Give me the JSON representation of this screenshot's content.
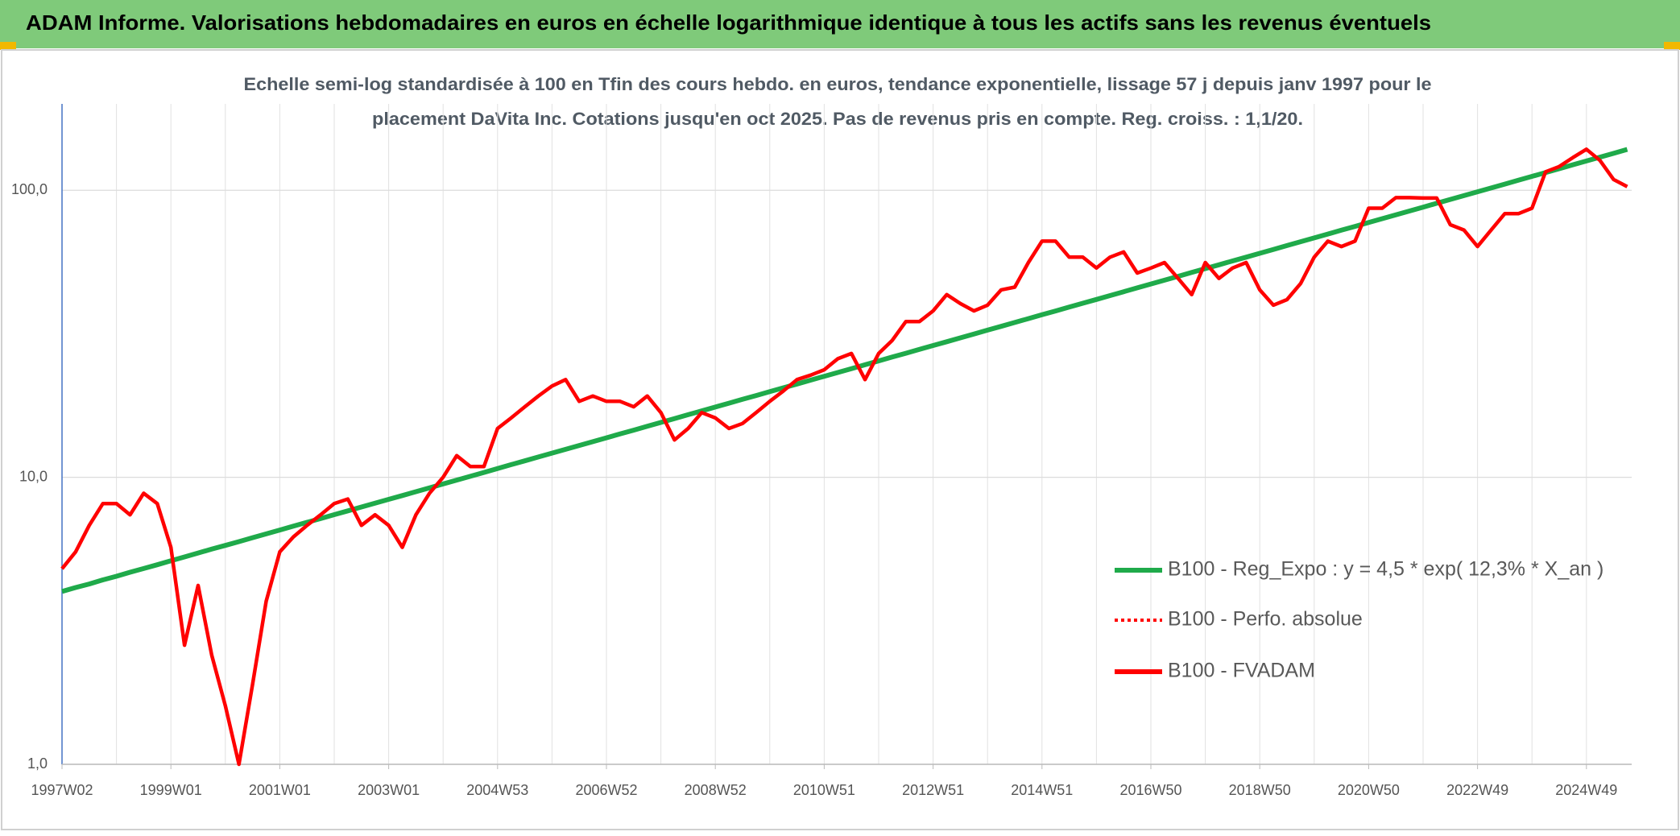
{
  "chart_data": {
    "type": "line",
    "title": "ADAM Informe. Valorisations hebdomadaires en euros en échelle logarithmique identique à tous les actifs sans les revenus éventuels",
    "subtitle": [
      "Echelle semi-log standardisée à 100 en Tfin des cours hebdo. en euros, tendance exponentielle, lissage 57 j depuis janv 1997 pour le",
      "placement DaVita Inc. Cotations jusqu'en oct 2025. Pas de revenus pris en compte. Reg. croiss. : 1,1/20."
    ],
    "log_scale": true,
    "grid": true,
    "legend": "right",
    "ylim": [
      1,
      200
    ],
    "yticks": [
      {
        "value": 1,
        "label": "1,0"
      },
      {
        "value": 10,
        "label": "10,0"
      },
      {
        "value": 100,
        "label": "100,0"
      }
    ],
    "categories": [
      "1997W02",
      null,
      null,
      null,
      null,
      null,
      null,
      null,
      "1999W01",
      null,
      null,
      null,
      null,
      null,
      null,
      null,
      "2001W01",
      null,
      null,
      null,
      null,
      null,
      null,
      null,
      "2003W01",
      null,
      null,
      null,
      null,
      null,
      null,
      null,
      "2004W53",
      null,
      null,
      null,
      null,
      null,
      null,
      null,
      "2006W52",
      null,
      null,
      null,
      null,
      null,
      null,
      null,
      "2008W52",
      null,
      null,
      null,
      null,
      null,
      null,
      null,
      "2010W51",
      null,
      null,
      null,
      null,
      null,
      null,
      null,
      "2012W51",
      null,
      null,
      null,
      null,
      null,
      null,
      null,
      "2014W51",
      null,
      null,
      null,
      null,
      null,
      null,
      null,
      "2016W50",
      null,
      null,
      null,
      null,
      null,
      null,
      null,
      "2018W50",
      null,
      null,
      null,
      null,
      null,
      null,
      null,
      "2020W50",
      null,
      null,
      null,
      null,
      null,
      null,
      null,
      "2022W49",
      null,
      null,
      null,
      null,
      null,
      null,
      null,
      "2024W49",
      null,
      null,
      null
    ],
    "series": [
      {
        "name": "B100 - Reg_Expo : y = 4,5 * exp( 12,3% *  X_an )",
        "color": "#1faa4a",
        "style": "solid",
        "values": [
          4.0,
          4.13,
          4.25,
          4.39,
          4.52,
          4.67,
          4.81,
          4.96,
          5.12,
          5.28,
          5.45,
          5.62,
          5.79,
          5.97,
          6.16,
          6.35,
          6.55,
          6.76,
          6.97,
          7.18,
          7.41,
          7.64,
          7.88,
          8.13,
          8.38,
          8.64,
          8.91,
          9.19,
          9.48,
          9.78,
          10.08,
          10.4,
          10.73,
          11.07,
          11.41,
          11.77,
          12.14,
          12.52,
          12.91,
          13.31,
          13.73,
          14.16,
          14.6,
          15.06,
          15.53,
          16.02,
          16.52,
          17.04,
          17.57,
          18.12,
          18.69,
          19.27,
          19.88,
          20.5,
          21.14,
          21.8,
          22.49,
          23.19,
          23.92,
          24.67,
          25.44,
          26.24,
          27.06,
          27.91,
          28.78,
          29.68,
          30.61,
          31.57,
          32.56,
          33.58,
          34.63,
          35.71,
          36.84,
          37.99,
          39.18,
          40.41,
          41.67,
          42.98,
          44.32,
          45.71,
          47.15,
          48.63,
          50.15,
          51.72,
          53.34,
          55.01,
          56.73,
          58.5,
          60.34,
          62.23,
          64.18,
          66.19,
          68.26,
          70.39,
          72.6,
          74.87,
          77.23,
          79.65,
          82.14,
          84.71,
          87.36,
          90.1,
          92.92,
          95.83,
          98.85,
          101.9,
          105.1,
          108.4,
          111.8,
          115.3,
          118.9,
          122.7,
          126.5,
          130.5,
          134.5,
          138.8
        ]
      },
      {
        "name": "B100 - Perfo. absolue",
        "color": "#ff0000",
        "style": "dotted",
        "values": [
          null,
          null,
          null,
          null,
          null,
          null,
          null,
          null,
          null,
          null,
          null,
          null,
          null,
          null,
          null,
          null,
          null,
          null,
          null,
          null,
          null,
          null,
          null,
          null,
          null,
          null,
          null,
          null,
          null,
          null,
          null,
          null,
          null,
          null,
          null,
          null,
          null,
          null,
          null,
          null,
          null,
          null,
          null,
          null,
          null,
          null,
          null,
          null,
          null,
          null,
          null,
          null,
          null,
          null,
          null,
          null,
          null,
          null,
          null,
          null,
          null,
          null,
          null,
          null,
          null,
          null,
          null,
          null,
          null,
          null,
          null,
          null,
          null,
          null,
          null,
          null,
          null,
          null,
          null,
          null,
          null,
          null,
          null,
          null,
          null,
          null,
          null,
          null,
          null,
          null,
          null,
          null,
          null,
          null,
          null,
          null,
          null,
          null,
          null,
          null,
          null,
          null,
          null,
          null,
          null,
          null,
          null,
          null,
          null,
          null,
          null,
          null,
          null,
          null,
          null,
          null
        ]
      },
      {
        "name": "B100 - FVADAM",
        "color": "#ff0000",
        "style": "solid",
        "values": [
          4.8,
          5.5,
          6.8,
          8.1,
          8.1,
          7.4,
          8.8,
          8.1,
          5.7,
          2.6,
          4.2,
          2.4,
          1.6,
          1.0,
          1.9,
          3.7,
          5.5,
          6.2,
          6.8,
          7.4,
          8.1,
          8.4,
          6.8,
          7.4,
          6.8,
          5.7,
          7.4,
          8.8,
          10.0,
          11.9,
          10.9,
          10.9,
          14.8,
          16.1,
          17.6,
          19.2,
          20.8,
          21.9,
          18.4,
          19.2,
          18.4,
          18.4,
          17.6,
          19.2,
          16.8,
          13.5,
          14.8,
          16.8,
          16.1,
          14.8,
          15.4,
          16.8,
          18.4,
          20.0,
          21.9,
          22.7,
          23.7,
          25.9,
          27.0,
          21.9,
          27.0,
          30.0,
          34.9,
          34.9,
          38.0,
          43.3,
          40.3,
          38.0,
          39.8,
          45.0,
          46.0,
          56.0,
          66.5,
          66.5,
          58.5,
          58.5,
          53.6,
          58.5,
          61.0,
          51.5,
          53.6,
          56.0,
          49.3,
          43.3,
          56.0,
          49.3,
          53.6,
          56.0,
          45.0,
          39.8,
          41.6,
          47.3,
          58.5,
          66.5,
          63.7,
          66.5,
          86.6,
          86.6,
          94.3,
          94.3,
          94.0,
          94.0,
          75.9,
          72.7,
          63.7,
          72.7,
          82.9,
          82.9,
          86.6,
          116,
          121,
          130,
          139,
          127,
          109,
          103
        ]
      }
    ]
  }
}
